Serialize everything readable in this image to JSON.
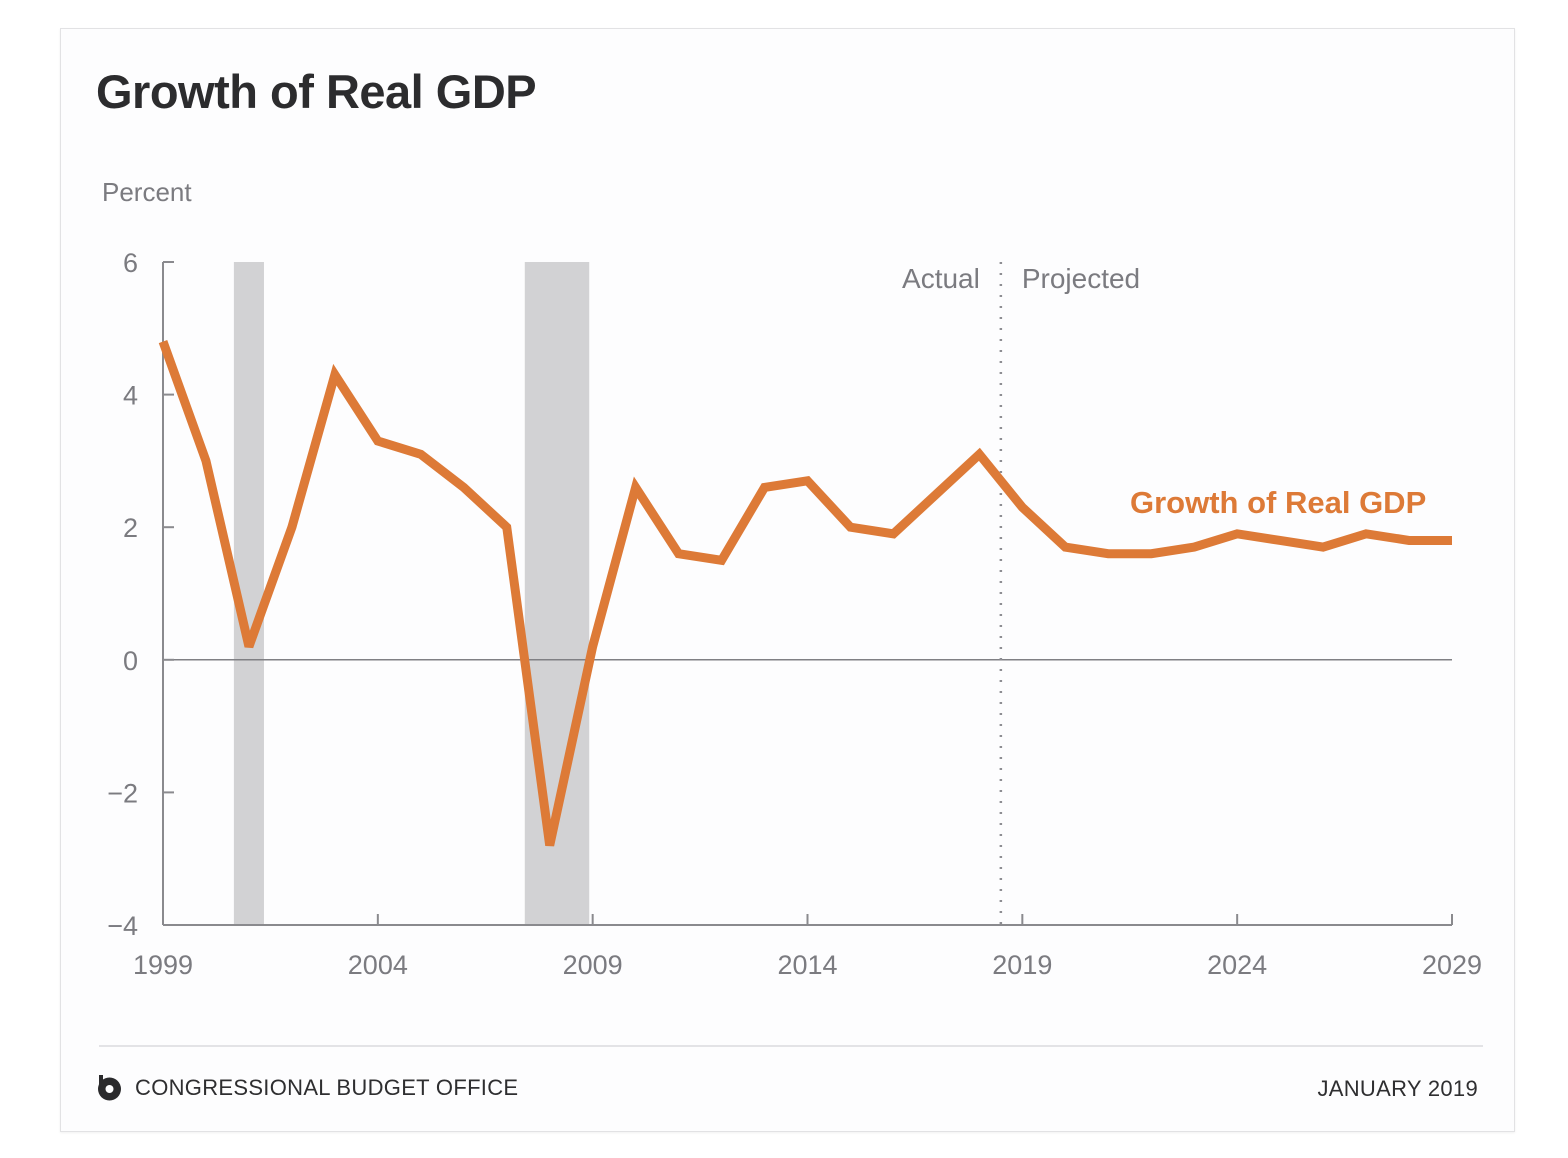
{
  "card": {
    "title": "Growth of Real GDP",
    "footer": {
      "organization": "CONGRESSIONAL BUDGET OFFICE",
      "logo_icon": "cbo-logo-icon",
      "date": "JANUARY 2019"
    }
  },
  "colors": {
    "series": "#dd7a37",
    "recession_band": "#d2d2d4",
    "axis": "#8a8a8e",
    "text_muted": "#7b7b80",
    "title": "#2c2c2e"
  },
  "chart_data": {
    "type": "line",
    "title": "Growth of Real GDP",
    "xlabel": "",
    "ylabel": "Percent",
    "xlim": [
      1999,
      2029
    ],
    "ylim": [
      -4,
      6
    ],
    "x_ticks": [
      1999,
      2004,
      2009,
      2014,
      2019,
      2024,
      2029
    ],
    "x_tick_labels": [
      "1999",
      "2004",
      "2009",
      "2014",
      "2019",
      "2024",
      "2029"
    ],
    "y_ticks": [
      -4,
      -2,
      0,
      2,
      4,
      6
    ],
    "y_tick_labels": [
      "−4",
      "−2",
      "0",
      "2",
      "4",
      "6"
    ],
    "grid": false,
    "zero_line": true,
    "legend": "inline-label right",
    "divider": {
      "x": 2018.5,
      "style": "dotted",
      "left_label": "Actual",
      "right_label": "Projected"
    },
    "recession_bands": [
      {
        "start": 2000.65,
        "end": 2001.35
      },
      {
        "start": 2007.42,
        "end": 2008.92
      }
    ],
    "x": [
      1999,
      2000,
      2001,
      2002,
      2003,
      2004,
      2005,
      2006,
      2007,
      2008,
      2009,
      2010,
      2011,
      2012,
      2013,
      2014,
      2015,
      2016,
      2017,
      2018,
      2019,
      2020,
      2021,
      2022,
      2023,
      2024,
      2025,
      2026,
      2027,
      2028,
      2029
    ],
    "series": [
      {
        "name": "Growth of Real GDP",
        "values": [
          4.8,
          3.0,
          0.2,
          2.0,
          4.3,
          3.3,
          3.1,
          2.6,
          2.0,
          -2.8,
          0.2,
          2.6,
          1.6,
          1.5,
          2.6,
          2.7,
          2.0,
          1.9,
          2.5,
          3.1,
          2.3,
          1.7,
          1.6,
          1.6,
          1.7,
          1.9,
          1.8,
          1.7,
          1.9,
          1.8,
          1.8
        ]
      }
    ]
  }
}
